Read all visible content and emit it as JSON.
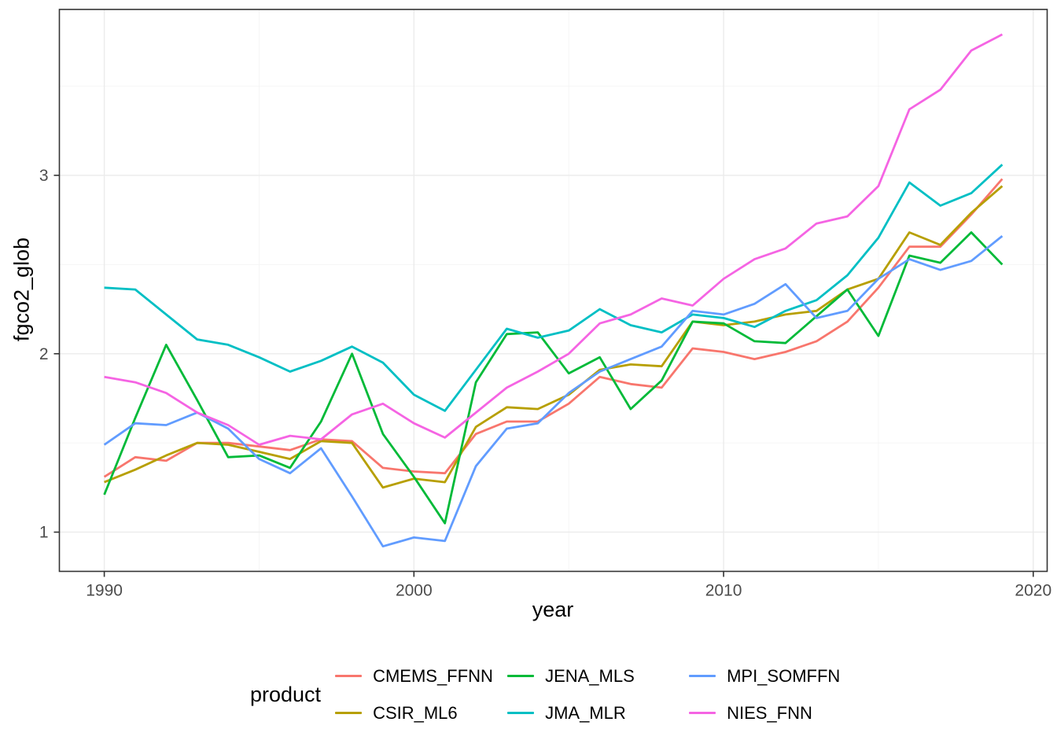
{
  "chart_data": {
    "type": "line",
    "title": "",
    "xlabel": "year",
    "ylabel": "fgco2_glob",
    "legend_title": "product",
    "legend_position": "bottom",
    "grid": true,
    "xlim": [
      1988.55,
      2020.45
    ],
    "ylim": [
      0.78,
      3.93
    ],
    "x_ticks": [
      1990,
      2000,
      2010,
      2020
    ],
    "x_minor_ticks": [
      1995,
      2005,
      2015
    ],
    "y_ticks": [
      1,
      2,
      3
    ],
    "y_minor_ticks": [
      1.5,
      2.5,
      3.5
    ],
    "x": [
      1990,
      1991,
      1992,
      1993,
      1994,
      1995,
      1996,
      1997,
      1998,
      1999,
      2000,
      2001,
      2002,
      2003,
      2004,
      2005,
      2006,
      2007,
      2008,
      2009,
      2010,
      2011,
      2012,
      2013,
      2014,
      2015,
      2016,
      2017,
      2018,
      2019
    ],
    "series": [
      {
        "name": "CMEMS_FFNN",
        "color": "#F8766D",
        "values": [
          1.31,
          1.42,
          1.4,
          1.5,
          1.5,
          1.48,
          1.46,
          1.52,
          1.51,
          1.36,
          1.34,
          1.33,
          1.55,
          1.62,
          1.62,
          1.72,
          1.87,
          1.83,
          1.81,
          2.03,
          2.01,
          1.97,
          2.01,
          2.07,
          2.18,
          2.37,
          2.6,
          2.6,
          2.78,
          2.98
        ]
      },
      {
        "name": "CSIR_ML6",
        "color": "#B79F00",
        "values": [
          1.28,
          1.35,
          1.43,
          1.5,
          1.49,
          1.45,
          1.41,
          1.51,
          1.5,
          1.25,
          1.3,
          1.28,
          1.59,
          1.7,
          1.69,
          1.77,
          1.91,
          1.94,
          1.93,
          2.18,
          2.16,
          2.18,
          2.22,
          2.24,
          2.36,
          2.42,
          2.68,
          2.61,
          2.79,
          2.94
        ]
      },
      {
        "name": "JENA_MLS",
        "color": "#00BA38",
        "values": [
          1.21,
          1.64,
          2.05,
          1.74,
          1.42,
          1.43,
          1.36,
          1.62,
          2.0,
          1.55,
          1.31,
          1.05,
          1.84,
          2.11,
          2.12,
          1.89,
          1.98,
          1.69,
          1.85,
          2.18,
          2.17,
          2.07,
          2.06,
          2.21,
          2.36,
          2.1,
          2.55,
          2.51,
          2.68,
          2.5
        ]
      },
      {
        "name": "JMA_MLR",
        "color": "#00BFC4",
        "values": [
          2.37,
          2.36,
          2.22,
          2.08,
          2.05,
          1.98,
          1.9,
          1.96,
          2.04,
          1.95,
          1.77,
          1.68,
          1.91,
          2.14,
          2.09,
          2.13,
          2.25,
          2.16,
          2.12,
          2.22,
          2.2,
          2.15,
          2.24,
          2.3,
          2.44,
          2.65,
          2.96,
          2.83,
          2.9,
          3.06
        ]
      },
      {
        "name": "MPI_SOMFFN",
        "color": "#619CFF",
        "values": [
          1.49,
          1.61,
          1.6,
          1.67,
          1.58,
          1.41,
          1.33,
          1.47,
          1.2,
          0.92,
          0.97,
          0.95,
          1.37,
          1.58,
          1.61,
          1.78,
          1.9,
          1.97,
          2.04,
          2.24,
          2.22,
          2.28,
          2.39,
          2.2,
          2.24,
          2.42,
          2.53,
          2.47,
          2.52,
          2.66
        ]
      },
      {
        "name": "NIES_FNN",
        "color": "#F564E3",
        "values": [
          1.87,
          1.84,
          1.78,
          1.67,
          1.6,
          1.49,
          1.54,
          1.52,
          1.66,
          1.72,
          1.61,
          1.53,
          1.67,
          1.81,
          1.9,
          2.0,
          2.17,
          2.22,
          2.31,
          2.27,
          2.42,
          2.53,
          2.59,
          2.73,
          2.77,
          2.94,
          3.37,
          3.48,
          3.7,
          3.79
        ]
      }
    ],
    "colors": {
      "panel_background": "#FFFFFF",
      "panel_border": "#333333",
      "grid_major": "#EBEBEB",
      "grid_minor": "#F4F4F4",
      "tick_mark": "#333333",
      "tick_label": "#4D4D4D",
      "axis_title": "#000000"
    }
  }
}
